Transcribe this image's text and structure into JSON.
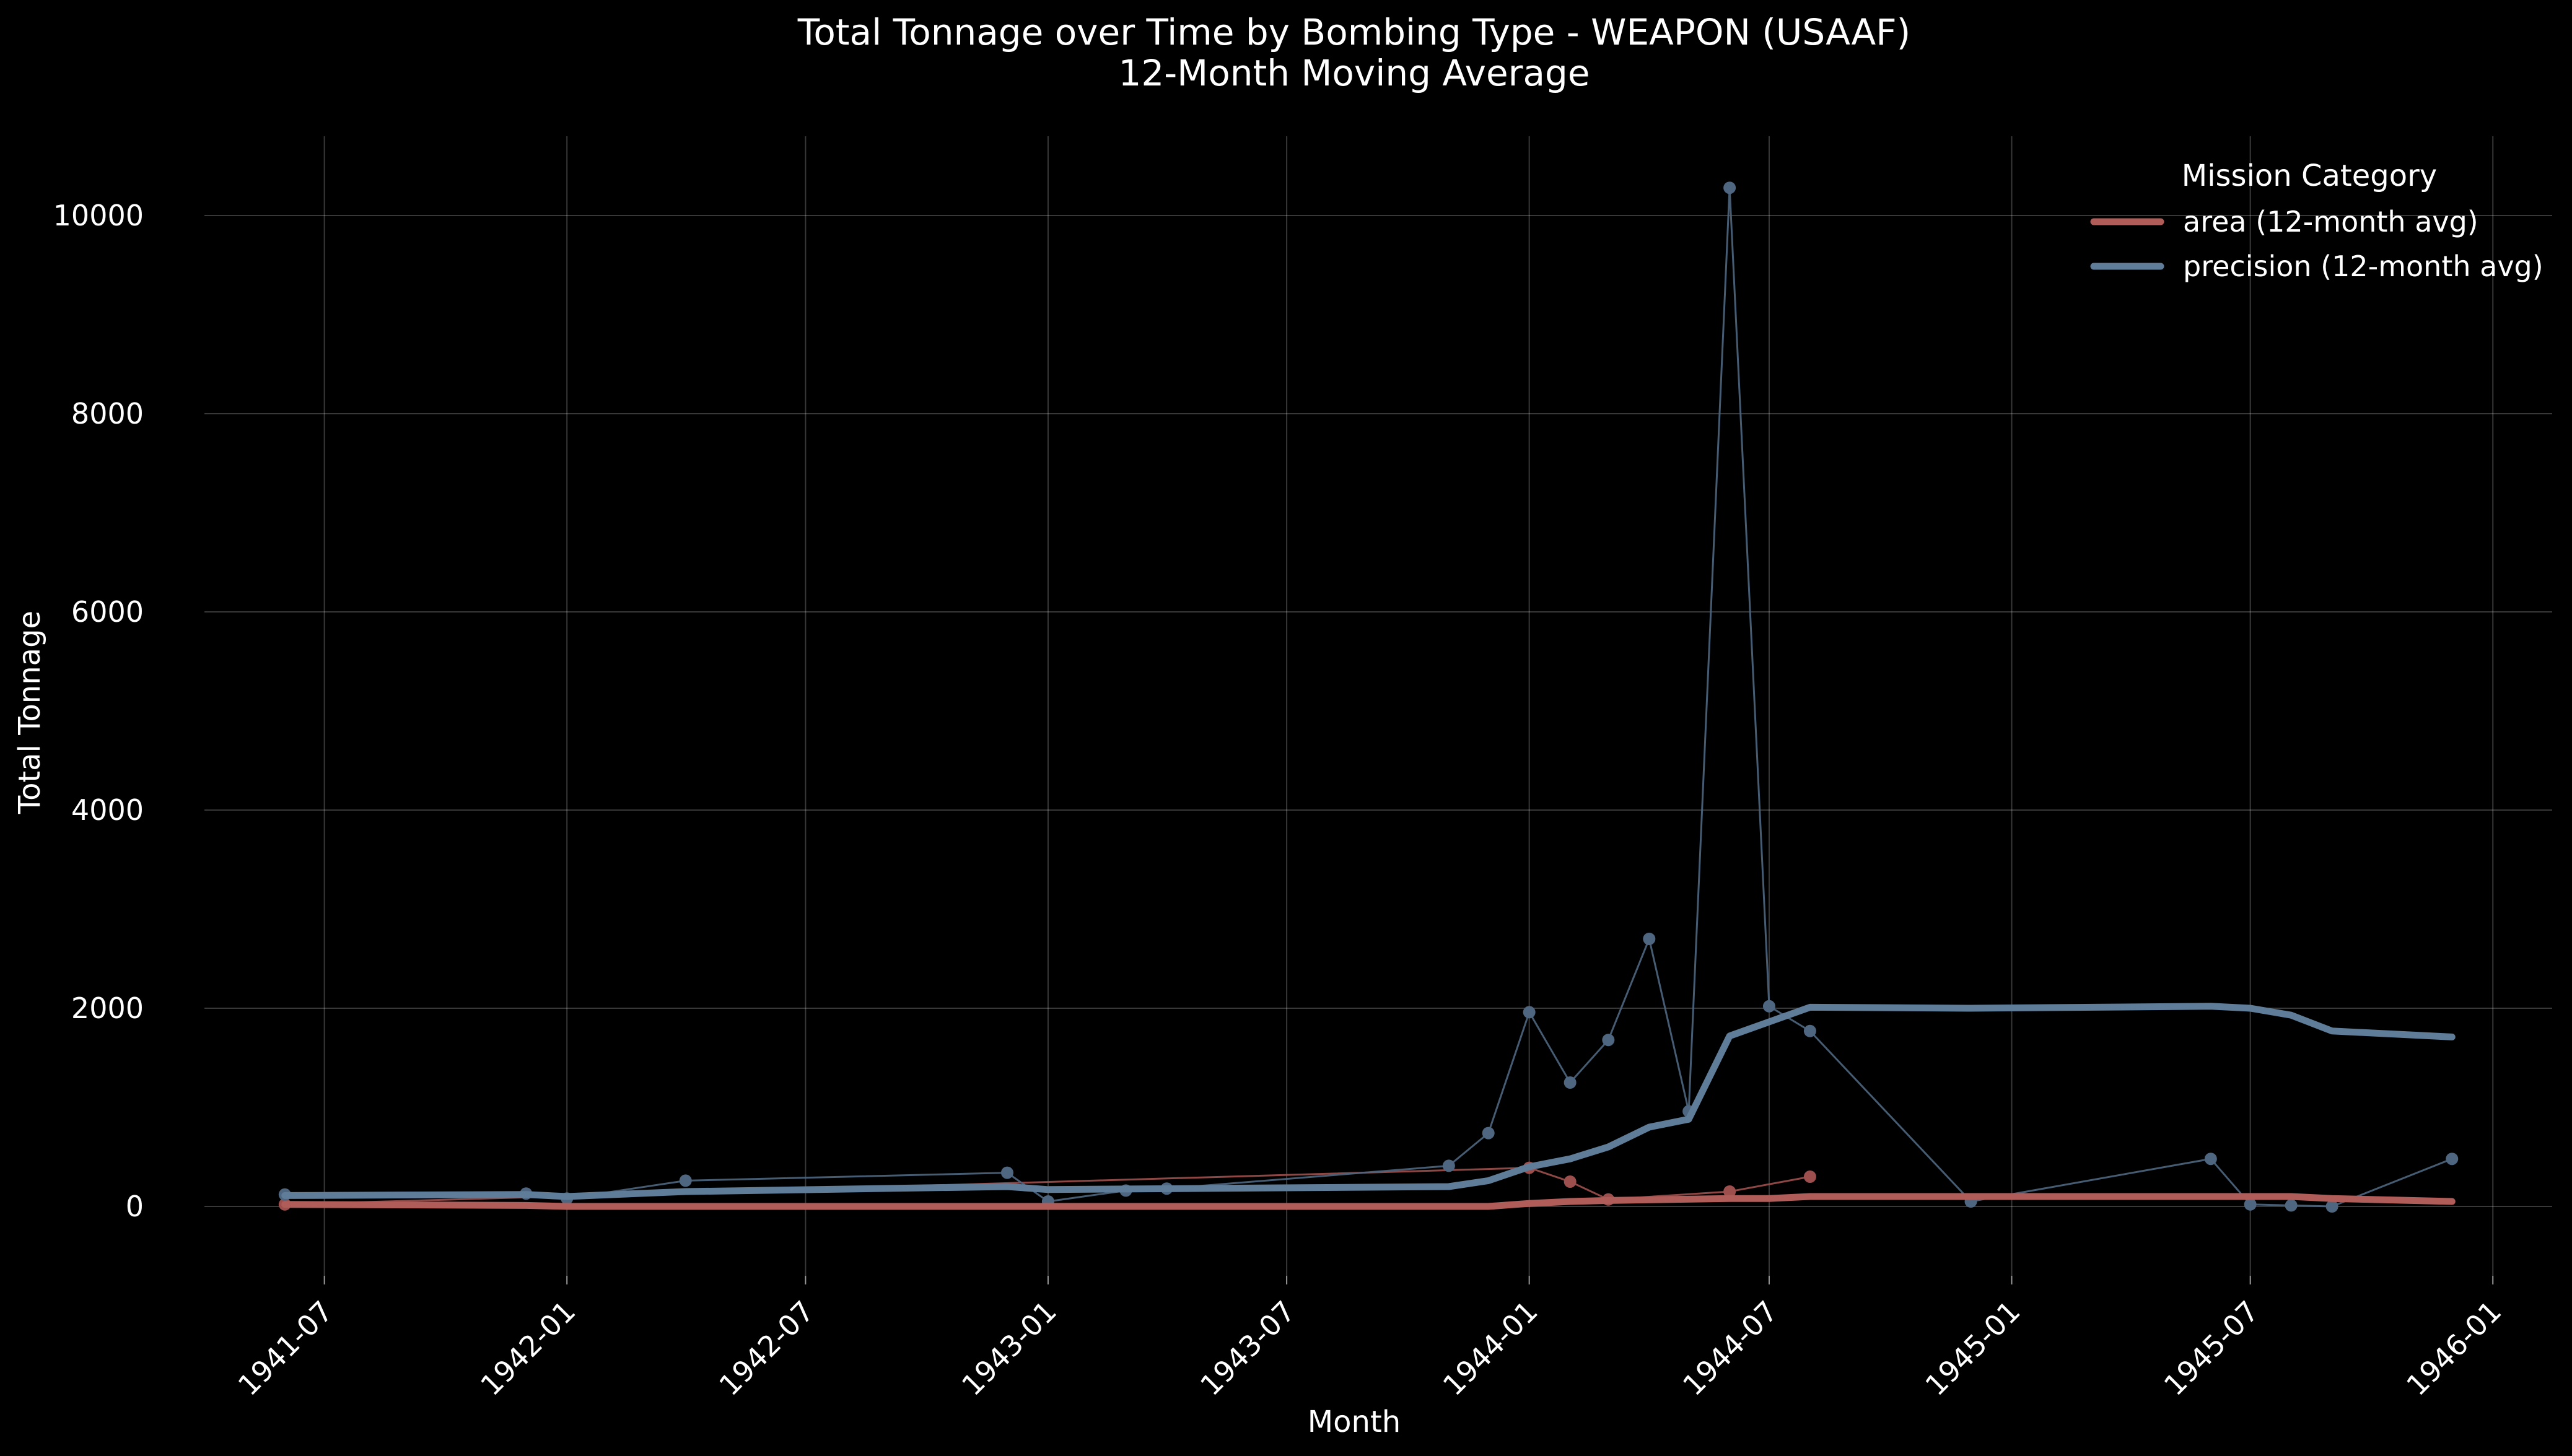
{
  "chart_data": {
    "type": "line",
    "title": "Total Tonnage over Time by Bombing Type - WEAPON (USAAF)",
    "subtitle": "12-Month Moving Average",
    "xlabel": "Month",
    "ylabel": "Total Tonnage",
    "xlim": [
      "1941-04-01",
      "1946-02-15"
    ],
    "ylim": [
      -700,
      10800
    ],
    "x_ticks": [
      "1941-07",
      "1942-01",
      "1942-07",
      "1943-01",
      "1943-07",
      "1944-01",
      "1944-07",
      "1945-01",
      "1945-07",
      "1946-01"
    ],
    "y_ticks": [
      0,
      2000,
      4000,
      6000,
      8000,
      10000
    ],
    "grid": true,
    "legend": {
      "title": "Mission Category",
      "placement": "top-right"
    },
    "series": [
      {
        "name": "area (12-month avg)",
        "role": "avg",
        "color": "#b05d5a",
        "points": [
          [
            "1941-06",
            20
          ],
          [
            "1941-12",
            10
          ],
          [
            "1942-01",
            0
          ],
          [
            "1943-12",
            0
          ],
          [
            "1944-01",
            30
          ],
          [
            "1944-02",
            50
          ],
          [
            "1944-03",
            60
          ],
          [
            "1944-06",
            80
          ],
          [
            "1944-07",
            80
          ],
          [
            "1944-08",
            100
          ],
          [
            "1945-08",
            100
          ],
          [
            "1945-09",
            80
          ],
          [
            "1945-12",
            50
          ]
        ]
      },
      {
        "name": "precision (12-month avg)",
        "role": "avg",
        "color": "#5f7d98",
        "points": [
          [
            "1941-06",
            110
          ],
          [
            "1941-12",
            120
          ],
          [
            "1942-01",
            100
          ],
          [
            "1942-04",
            150
          ],
          [
            "1942-12",
            200
          ],
          [
            "1943-01",
            170
          ],
          [
            "1943-11",
            200
          ],
          [
            "1943-12",
            260
          ],
          [
            "1944-01",
            400
          ],
          [
            "1944-02",
            480
          ],
          [
            "1944-03",
            600
          ],
          [
            "1944-04",
            800
          ],
          [
            "1944-05",
            880
          ],
          [
            "1944-06",
            1720
          ],
          [
            "1944-08",
            2010
          ],
          [
            "1944-12",
            2000
          ],
          [
            "1945-06",
            2020
          ],
          [
            "1945-07",
            2000
          ],
          [
            "1945-08",
            1930
          ],
          [
            "1945-09",
            1770
          ],
          [
            "1945-12",
            1710
          ]
        ]
      },
      {
        "role": "raw",
        "color": "#9c4f4d",
        "points": [
          [
            "1941-06",
            20
          ],
          [
            "1944-01",
            390
          ],
          [
            "1944-02",
            250
          ],
          [
            "1944-03",
            70
          ],
          [
            "1944-06",
            150
          ],
          [
            "1944-08",
            300
          ]
        ]
      },
      {
        "role": "raw",
        "color": "#4e6680",
        "points": [
          [
            "1941-06",
            120
          ],
          [
            "1941-12",
            130
          ],
          [
            "1942-01",
            80
          ],
          [
            "1942-04",
            260
          ],
          [
            "1942-12",
            340
          ],
          [
            "1943-01",
            50
          ],
          [
            "1943-03",
            160
          ],
          [
            "1943-04",
            180
          ],
          [
            "1943-11",
            410
          ],
          [
            "1943-12",
            740
          ],
          [
            "1944-01",
            1960
          ],
          [
            "1944-02",
            1250
          ],
          [
            "1944-03",
            1680
          ],
          [
            "1944-04",
            2700
          ],
          [
            "1944-05",
            960
          ],
          [
            "1944-06",
            10280
          ],
          [
            "1944-07",
            2020
          ],
          [
            "1944-08",
            1770
          ],
          [
            "1944-12",
            50
          ],
          [
            "1945-06",
            480
          ],
          [
            "1945-07",
            20
          ],
          [
            "1945-08",
            10
          ],
          [
            "1945-09",
            0
          ],
          [
            "1945-12",
            480
          ]
        ]
      }
    ]
  }
}
